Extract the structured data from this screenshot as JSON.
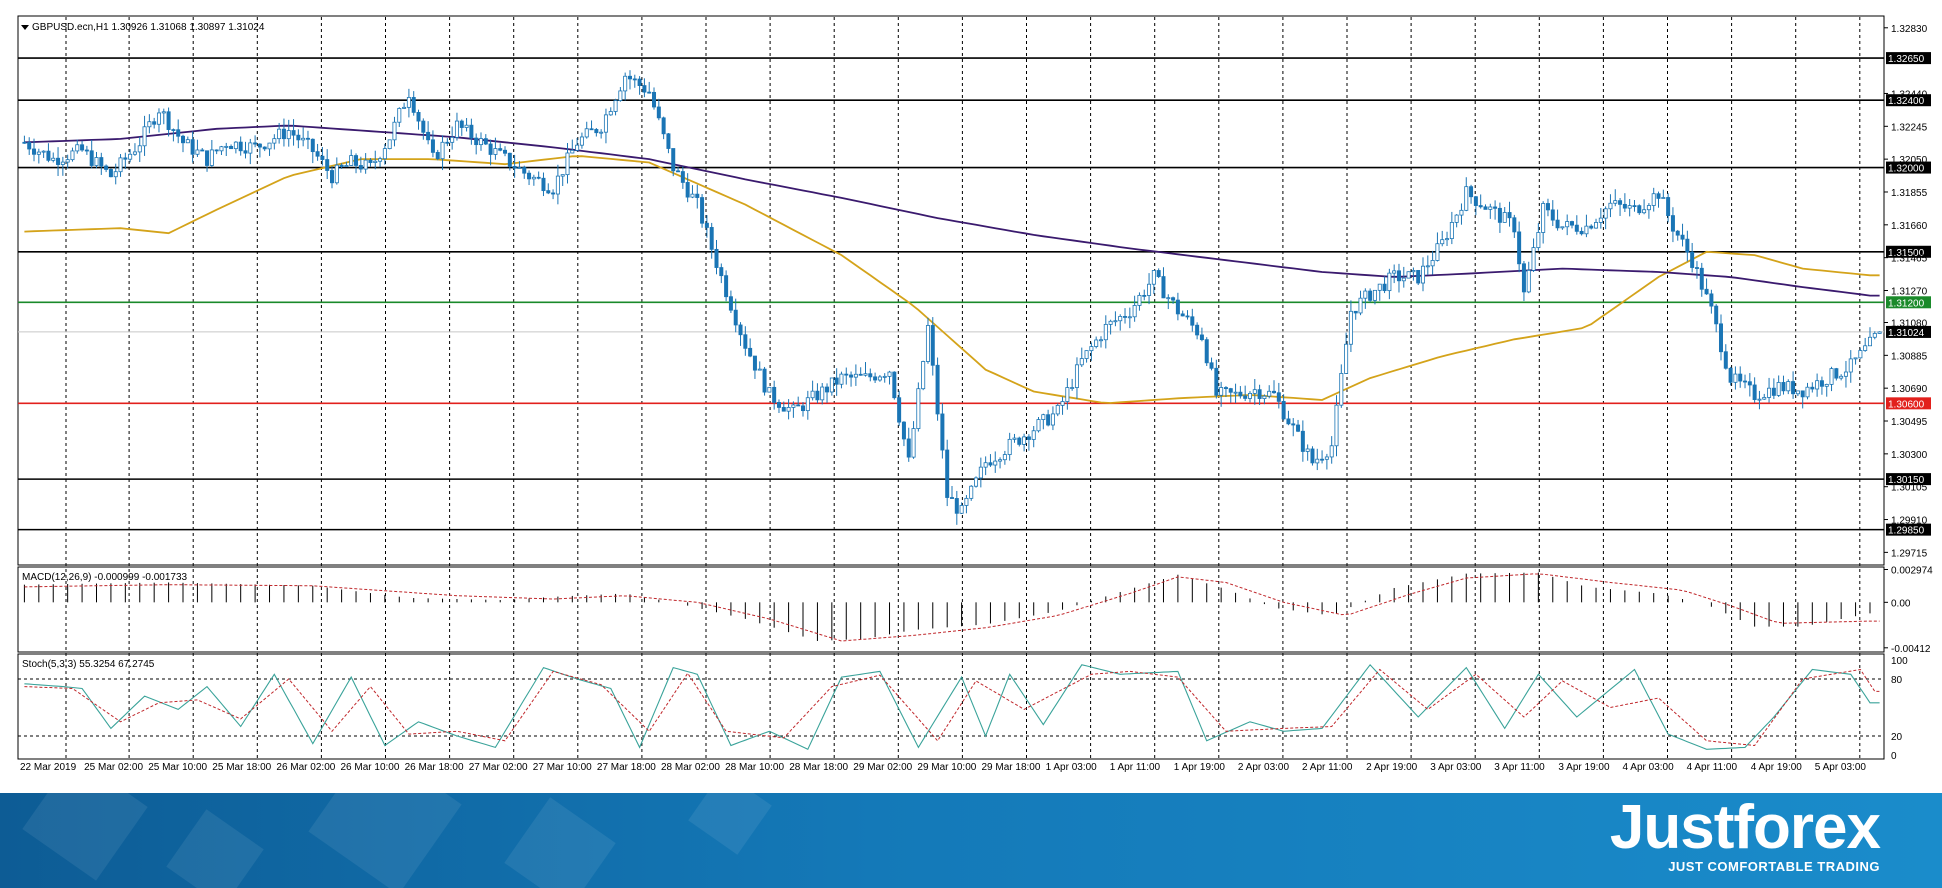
{
  "window": {
    "header": "GBPUSD.ecn,H1  1.30926 1.31068 1.30897 1.31024"
  },
  "colors": {
    "up_candle": "#1a75b5",
    "down_candle": "#1a75b5",
    "ma_fast": "#d4a31a",
    "ma_slow": "#3a1a6e",
    "support": "#e2201c",
    "resistance_near": "#1a8a2a",
    "level": "#000000",
    "macd_signal": "#c0282c",
    "stoch_main": "#3aa39a",
    "stoch_signal": "#c0282c",
    "brand": "#1479b8"
  },
  "chart_data": {
    "type": "candlestick",
    "symbol": "GBPUSD.ecn",
    "timeframe": "H1",
    "ohlc_last": {
      "open": 1.30926,
      "high": 1.31068,
      "low": 1.30897,
      "close": 1.31024
    },
    "price_axis": {
      "ylim": [
        1.2964,
        1.329
      ],
      "ticks": [
        "1.32830",
        "1.32440",
        "1.32245",
        "1.32050",
        "1.31855",
        "1.31660",
        "1.31465",
        "1.31270",
        "1.31080",
        "1.30885",
        "1.30690",
        "1.30495",
        "1.30300",
        "1.30105",
        "1.29910",
        "1.29715"
      ]
    },
    "horizontal_levels": [
      {
        "value": 1.3265,
        "label": "1.32650",
        "kind": "level"
      },
      {
        "value": 1.324,
        "label": "1.32400",
        "kind": "level"
      },
      {
        "value": 1.32,
        "label": "1.32000",
        "kind": "level"
      },
      {
        "value": 1.315,
        "label": "1.31500",
        "kind": "level"
      },
      {
        "value": 1.312,
        "label": "1.31200",
        "kind": "resistance_near"
      },
      {
        "value": 1.31024,
        "label": "1.31024",
        "kind": "current"
      },
      {
        "value": 1.306,
        "label": "1.30600",
        "kind": "support"
      },
      {
        "value": 1.3015,
        "label": "1.30150",
        "kind": "level"
      },
      {
        "value": 1.2985,
        "label": "1.29850",
        "kind": "level"
      }
    ],
    "x_axis": {
      "labels": [
        "22 Mar 2019",
        "25 Mar 02:00",
        "25 Mar 10:00",
        "25 Mar 18:00",
        "26 Mar 02:00",
        "26 Mar 10:00",
        "26 Mar 18:00",
        "27 Mar 02:00",
        "27 Mar 10:00",
        "27 Mar 18:00",
        "28 Mar 02:00",
        "28 Mar 10:00",
        "28 Mar 18:00",
        "29 Mar 02:00",
        "29 Mar 10:00",
        "29 Mar 18:00",
        "1 Apr 03:00",
        "1 Apr 11:00",
        "1 Apr 19:00",
        "2 Apr 03:00",
        "2 Apr 11:00",
        "2 Apr 19:00",
        "3 Apr 03:00",
        "3 Apr 11:00",
        "3 Apr 19:00",
        "4 Apr 03:00",
        "4 Apr 11:00",
        "4 Apr 19:00",
        "5 Apr 03:00"
      ]
    },
    "price_path": [
      [
        0,
        1.3215
      ],
      [
        6,
        1.3205
      ],
      [
        12,
        1.321
      ],
      [
        18,
        1.3195
      ],
      [
        24,
        1.3215
      ],
      [
        28,
        1.3235
      ],
      [
        33,
        1.3215
      ],
      [
        38,
        1.3205
      ],
      [
        42,
        1.3215
      ],
      [
        48,
        1.3212
      ],
      [
        55,
        1.3222
      ],
      [
        60,
        1.321
      ],
      [
        64,
        1.3195
      ],
      [
        68,
        1.3203
      ],
      [
        72,
        1.32
      ],
      [
        76,
        1.3218
      ],
      [
        80,
        1.3245
      ],
      [
        85,
        1.3205
      ],
      [
        90,
        1.3225
      ],
      [
        95,
        1.3215
      ],
      [
        100,
        1.3205
      ],
      [
        105,
        1.3195
      ],
      [
        110,
        1.3188
      ],
      [
        115,
        1.3215
      ],
      [
        120,
        1.3225
      ],
      [
        125,
        1.3255
      ],
      [
        130,
        1.3245
      ],
      [
        135,
        1.32
      ],
      [
        140,
        1.3178
      ],
      [
        145,
        1.3135
      ],
      [
        150,
        1.3095
      ],
      [
        155,
        1.3065
      ],
      [
        160,
        1.3055
      ],
      [
        165,
        1.3065
      ],
      [
        170,
        1.3075
      ],
      [
        175,
        1.3075
      ],
      [
        180,
        1.308
      ],
      [
        184,
        1.3025
      ],
      [
        188,
        1.3105
      ],
      [
        192,
        1.3005
      ],
      [
        195,
        1.2995
      ],
      [
        200,
        1.3025
      ],
      [
        205,
        1.3035
      ],
      [
        210,
        1.3045
      ],
      [
        215,
        1.3055
      ],
      [
        220,
        1.3085
      ],
      [
        225,
        1.3105
      ],
      [
        230,
        1.3115
      ],
      [
        235,
        1.3135
      ],
      [
        240,
        1.3115
      ],
      [
        245,
        1.31
      ],
      [
        248,
        1.3065
      ],
      [
        252,
        1.3065
      ],
      [
        256,
        1.3068
      ],
      [
        260,
        1.3065
      ],
      [
        264,
        1.3045
      ],
      [
        268,
        1.3025
      ],
      [
        272,
        1.3035
      ],
      [
        276,
        1.3115
      ],
      [
        280,
        1.3125
      ],
      [
        285,
        1.3135
      ],
      [
        290,
        1.3135
      ],
      [
        295,
        1.3155
      ],
      [
        300,
        1.3185
      ],
      [
        305,
        1.3175
      ],
      [
        310,
        1.3165
      ],
      [
        312,
        1.3125
      ],
      [
        316,
        1.3175
      ],
      [
        320,
        1.3165
      ],
      [
        325,
        1.3165
      ],
      [
        330,
        1.3178
      ],
      [
        335,
        1.3175
      ],
      [
        340,
        1.3185
      ],
      [
        343,
        1.3165
      ],
      [
        347,
        1.3145
      ],
      [
        351,
        1.3115
      ],
      [
        355,
        1.3075
      ],
      [
        360,
        1.3065
      ],
      [
        365,
        1.307
      ],
      [
        370,
        1.3068
      ],
      [
        375,
        1.3075
      ],
      [
        380,
        1.3082
      ],
      [
        384,
        1.3095
      ],
      [
        386,
        1.3102
      ]
    ],
    "moving_averages": [
      {
        "name": "fast",
        "color_key": "ma_fast",
        "values": [
          [
            0,
            1.3162
          ],
          [
            20,
            1.3164
          ],
          [
            30,
            1.3161
          ],
          [
            40,
            1.3175
          ],
          [
            55,
            1.3195
          ],
          [
            70,
            1.3205
          ],
          [
            85,
            1.3205
          ],
          [
            100,
            1.3202
          ],
          [
            115,
            1.3207
          ],
          [
            130,
            1.3203
          ],
          [
            150,
            1.3178
          ],
          [
            170,
            1.3148
          ],
          [
            185,
            1.3118
          ],
          [
            200,
            1.308
          ],
          [
            210,
            1.3067
          ],
          [
            225,
            1.306
          ],
          [
            240,
            1.3063
          ],
          [
            255,
            1.3065
          ],
          [
            270,
            1.3062
          ],
          [
            280,
            1.3075
          ],
          [
            295,
            1.3088
          ],
          [
            310,
            1.3098
          ],
          [
            325,
            1.3105
          ],
          [
            340,
            1.3135
          ],
          [
            350,
            1.315
          ],
          [
            360,
            1.3148
          ],
          [
            370,
            1.314
          ],
          [
            384,
            1.3136
          ]
        ]
      },
      {
        "name": "slow",
        "color_key": "ma_slow",
        "values": [
          [
            0,
            1.3215
          ],
          [
            20,
            1.3217
          ],
          [
            40,
            1.3223
          ],
          [
            55,
            1.3225
          ],
          [
            70,
            1.3222
          ],
          [
            90,
            1.3218
          ],
          [
            110,
            1.3212
          ],
          [
            130,
            1.3205
          ],
          [
            150,
            1.3193
          ],
          [
            170,
            1.3182
          ],
          [
            190,
            1.317
          ],
          [
            210,
            1.316
          ],
          [
            230,
            1.3152
          ],
          [
            250,
            1.3145
          ],
          [
            270,
            1.3138
          ],
          [
            285,
            1.3135
          ],
          [
            300,
            1.3137
          ],
          [
            320,
            1.314
          ],
          [
            340,
            1.3138
          ],
          [
            355,
            1.3135
          ],
          [
            370,
            1.3129
          ],
          [
            384,
            1.3124
          ]
        ]
      }
    ],
    "macd": {
      "label": "MACD(12,26,9) -0.000999 -0.001733",
      "params": [
        12,
        26,
        9
      ],
      "main": -0.000999,
      "signal": -0.001733,
      "ylim": [
        -0.0045,
        0.0032
      ],
      "ticks": [
        "0.002974",
        "0.00",
        "-0.00412"
      ],
      "hist_path": [
        [
          0,
          0.0016
        ],
        [
          30,
          0.0018
        ],
        [
          60,
          0.0015
        ],
        [
          80,
          0.0004
        ],
        [
          100,
          0.0002
        ],
        [
          110,
          0.0005
        ],
        [
          125,
          0.0008
        ],
        [
          135,
          0.0
        ],
        [
          150,
          -0.0015
        ],
        [
          165,
          -0.0035
        ],
        [
          175,
          -0.0033
        ],
        [
          185,
          -0.0025
        ],
        [
          200,
          -0.002
        ],
        [
          215,
          -0.0008
        ],
        [
          230,
          0.0012
        ],
        [
          240,
          0.0025
        ],
        [
          250,
          0.0012
        ],
        [
          260,
          -0.0005
        ],
        [
          272,
          -0.0012
        ],
        [
          285,
          0.0013
        ],
        [
          300,
          0.0026
        ],
        [
          315,
          0.0027
        ],
        [
          325,
          0.0014
        ],
        [
          340,
          0.0008
        ],
        [
          350,
          -0.0002
        ],
        [
          360,
          -0.0022
        ],
        [
          370,
          -0.0022
        ],
        [
          384,
          -0.001
        ]
      ],
      "signal_path": [
        [
          0,
          0.0014
        ],
        [
          30,
          0.0016
        ],
        [
          60,
          0.0015
        ],
        [
          90,
          0.0006
        ],
        [
          110,
          0.0003
        ],
        [
          125,
          0.0006
        ],
        [
          140,
          0.0
        ],
        [
          155,
          -0.0015
        ],
        [
          170,
          -0.0035
        ],
        [
          185,
          -0.003
        ],
        [
          200,
          -0.0023
        ],
        [
          215,
          -0.0012
        ],
        [
          230,
          0.0008
        ],
        [
          240,
          0.0023
        ],
        [
          250,
          0.0018
        ],
        [
          262,
          0.0
        ],
        [
          275,
          -0.0012
        ],
        [
          288,
          0.0007
        ],
        [
          300,
          0.0022
        ],
        [
          315,
          0.0026
        ],
        [
          330,
          0.0018
        ],
        [
          345,
          0.0011
        ],
        [
          355,
          -0.0003
        ],
        [
          365,
          -0.0019
        ],
        [
          384,
          -0.0017
        ]
      ]
    },
    "stochastic": {
      "label": "Stoch(5,3,3) 55.3254 67.2745",
      "params": [
        5,
        3,
        3
      ],
      "main": 55.3254,
      "signal": 67.2745,
      "ylim": [
        0,
        100
      ],
      "ticks": [
        "100",
        "80",
        "20",
        "0"
      ],
      "levels": [
        80,
        20
      ],
      "main_path": [
        [
          0,
          75
        ],
        [
          8,
          72
        ],
        [
          12,
          70
        ],
        [
          18,
          28
        ],
        [
          25,
          62
        ],
        [
          32,
          48
        ],
        [
          38,
          72
        ],
        [
          45,
          30
        ],
        [
          52,
          85
        ],
        [
          60,
          12
        ],
        [
          68,
          82
        ],
        [
          75,
          10
        ],
        [
          82,
          35
        ],
        [
          90,
          20
        ],
        [
          98,
          8
        ],
        [
          108,
          92
        ],
        [
          115,
          80
        ],
        [
          122,
          70
        ],
        [
          128,
          8
        ],
        [
          135,
          92
        ],
        [
          140,
          85
        ],
        [
          147,
          10
        ],
        [
          155,
          25
        ],
        [
          163,
          6
        ],
        [
          170,
          82
        ],
        [
          178,
          88
        ],
        [
          186,
          8
        ],
        [
          195,
          82
        ],
        [
          200,
          20
        ],
        [
          205,
          85
        ],
        [
          212,
          32
        ],
        [
          220,
          95
        ],
        [
          228,
          85
        ],
        [
          240,
          88
        ],
        [
          246,
          15
        ],
        [
          255,
          35
        ],
        [
          262,
          25
        ],
        [
          270,
          28
        ],
        [
          280,
          95
        ],
        [
          290,
          40
        ],
        [
          300,
          92
        ],
        [
          308,
          28
        ],
        [
          315,
          85
        ],
        [
          323,
          40
        ],
        [
          335,
          90
        ],
        [
          342,
          22
        ],
        [
          350,
          6
        ],
        [
          358,
          8
        ],
        [
          364,
          40
        ],
        [
          372,
          90
        ],
        [
          380,
          85
        ],
        [
          384,
          55
        ]
      ],
      "signal_path": [
        [
          0,
          72
        ],
        [
          10,
          70
        ],
        [
          20,
          35
        ],
        [
          28,
          55
        ],
        [
          36,
          58
        ],
        [
          45,
          38
        ],
        [
          55,
          80
        ],
        [
          64,
          25
        ],
        [
          72,
          72
        ],
        [
          80,
          22
        ],
        [
          90,
          25
        ],
        [
          100,
          15
        ],
        [
          110,
          88
        ],
        [
          120,
          74
        ],
        [
          130,
          25
        ],
        [
          138,
          86
        ],
        [
          146,
          25
        ],
        [
          158,
          18
        ],
        [
          168,
          72
        ],
        [
          178,
          84
        ],
        [
          190,
          15
        ],
        [
          198,
          78
        ],
        [
          208,
          48
        ],
        [
          222,
          85
        ],
        [
          230,
          88
        ],
        [
          240,
          82
        ],
        [
          250,
          25
        ],
        [
          262,
          28
        ],
        [
          272,
          30
        ],
        [
          282,
          90
        ],
        [
          292,
          48
        ],
        [
          302,
          85
        ],
        [
          312,
          40
        ],
        [
          320,
          78
        ],
        [
          330,
          50
        ],
        [
          340,
          60
        ],
        [
          350,
          15
        ],
        [
          360,
          10
        ],
        [
          370,
          80
        ],
        [
          382,
          90
        ],
        [
          385,
          67
        ]
      ]
    },
    "bar_count": 387,
    "grid": "dashed vertical"
  },
  "branding": {
    "logo": "Justforex",
    "tagline": "JUST COMFORTABLE TRADING"
  }
}
